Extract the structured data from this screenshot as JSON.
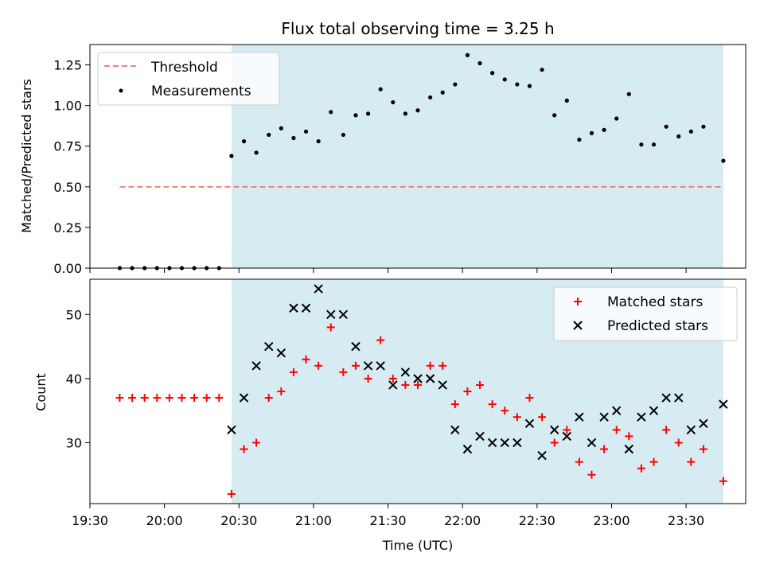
{
  "title": "Flux total observing time = 3.25 h",
  "colors": {
    "shade": "#add8e6",
    "threshold": "#f08080",
    "measurement": "#000000",
    "matched": "#ff0000",
    "predicted": "#000000"
  },
  "chart_data": [
    {
      "type": "scatter",
      "ylabel": "Matched/Predicted stars",
      "ylim": [
        0,
        1.375
      ],
      "yticks": [
        "0.00",
        "0.25",
        "0.50",
        "0.75",
        "1.00",
        "1.25"
      ],
      "ytick_values": [
        0,
        0.25,
        0.5,
        0.75,
        1.0,
        1.25
      ],
      "xlim": [
        "19:30",
        "23:54"
      ],
      "shaded_span": [
        "20:27",
        "23:45"
      ],
      "legend": {
        "position": "top-left",
        "threshold_label": "Threshold",
        "measurements_label": "Measurements"
      },
      "threshold": {
        "value": 0.5,
        "x": [
          "19:42",
          "23:45"
        ]
      },
      "x": [
        "19:42",
        "19:47",
        "19:52",
        "19:57",
        "20:02",
        "20:07",
        "20:12",
        "20:17",
        "20:22",
        "20:27",
        "20:32",
        "20:37",
        "20:42",
        "20:47",
        "20:52",
        "20:57",
        "21:02",
        "21:07",
        "21:12",
        "21:17",
        "21:22",
        "21:27",
        "21:32",
        "21:37",
        "21:42",
        "21:47",
        "21:52",
        "21:57",
        "22:02",
        "22:07",
        "22:12",
        "22:17",
        "22:22",
        "22:27",
        "22:32",
        "22:37",
        "22:42",
        "22:47",
        "22:52",
        "22:57",
        "23:02",
        "23:07",
        "23:12",
        "23:17",
        "23:22",
        "23:27",
        "23:32",
        "23:37",
        "23:45"
      ],
      "values": [
        0,
        0,
        0,
        0,
        0,
        0,
        0,
        0,
        0,
        0.69,
        0.78,
        0.71,
        0.82,
        0.86,
        0.8,
        0.84,
        0.78,
        0.96,
        0.82,
        0.94,
        0.95,
        1.1,
        1.02,
        0.95,
        0.97,
        1.05,
        1.08,
        1.13,
        1.31,
        1.26,
        1.2,
        1.16,
        1.13,
        1.12,
        1.22,
        0.94,
        1.03,
        0.79,
        0.83,
        0.85,
        0.92,
        1.07,
        0.76,
        0.76,
        0.87,
        0.81,
        0.84,
        0.87,
        0.66
      ]
    },
    {
      "type": "scatter",
      "xlabel": "Time (UTC)",
      "ylabel": "Count",
      "ylim": [
        20.5,
        55.5
      ],
      "yticks": [
        "30",
        "40",
        "50"
      ],
      "ytick_values": [
        30,
        40,
        50
      ],
      "xlim": [
        "19:30",
        "23:54"
      ],
      "xticks": [
        "19:30",
        "20:00",
        "20:30",
        "21:00",
        "21:30",
        "22:00",
        "22:30",
        "23:00",
        "23:30"
      ],
      "shaded_span": [
        "20:27",
        "23:45"
      ],
      "legend": {
        "position": "top-right"
      },
      "series": [
        {
          "name": "Matched stars",
          "marker": "plus",
          "x": [
            "19:42",
            "19:47",
            "19:52",
            "19:57",
            "20:02",
            "20:07",
            "20:12",
            "20:17",
            "20:22",
            "20:27",
            "20:32",
            "20:37",
            "20:42",
            "20:47",
            "20:52",
            "20:57",
            "21:02",
            "21:07",
            "21:12",
            "21:17",
            "21:22",
            "21:27",
            "21:32",
            "21:37",
            "21:42",
            "21:47",
            "21:52",
            "21:57",
            "22:02",
            "22:07",
            "22:12",
            "22:17",
            "22:22",
            "22:27",
            "22:32",
            "22:37",
            "22:42",
            "22:47",
            "22:52",
            "22:57",
            "23:02",
            "23:07",
            "23:12",
            "23:17",
            "23:22",
            "23:27",
            "23:32",
            "23:37",
            "23:45"
          ],
          "values": [
            37,
            37,
            37,
            37,
            37,
            37,
            37,
            37,
            37,
            22,
            29,
            30,
            37,
            38,
            41,
            43,
            42,
            48,
            41,
            42,
            40,
            46,
            40,
            39,
            39,
            42,
            42,
            36,
            38,
            39,
            36,
            35,
            34,
            37,
            34,
            30,
            32,
            27,
            25,
            29,
            32,
            31,
            26,
            27,
            32,
            30,
            27,
            29,
            24
          ]
        },
        {
          "name": "Predicted stars",
          "marker": "x",
          "x": [
            "20:27",
            "20:32",
            "20:37",
            "20:42",
            "20:47",
            "20:52",
            "20:57",
            "21:02",
            "21:07",
            "21:12",
            "21:17",
            "21:22",
            "21:27",
            "21:32",
            "21:37",
            "21:42",
            "21:47",
            "21:52",
            "21:57",
            "22:02",
            "22:07",
            "22:12",
            "22:17",
            "22:22",
            "22:27",
            "22:32",
            "22:37",
            "22:42",
            "22:47",
            "22:52",
            "22:57",
            "23:02",
            "23:07",
            "23:12",
            "23:17",
            "23:22",
            "23:27",
            "23:32",
            "23:37",
            "23:45"
          ],
          "values": [
            32,
            37,
            42,
            45,
            44,
            51,
            51,
            54,
            50,
            50,
            45,
            42,
            42,
            39,
            41,
            40,
            40,
            39,
            32,
            29,
            31,
            30,
            30,
            30,
            33,
            28,
            32,
            31,
            34,
            30,
            34,
            35,
            29,
            34,
            35,
            37,
            37,
            32,
            33,
            36
          ]
        }
      ]
    }
  ]
}
